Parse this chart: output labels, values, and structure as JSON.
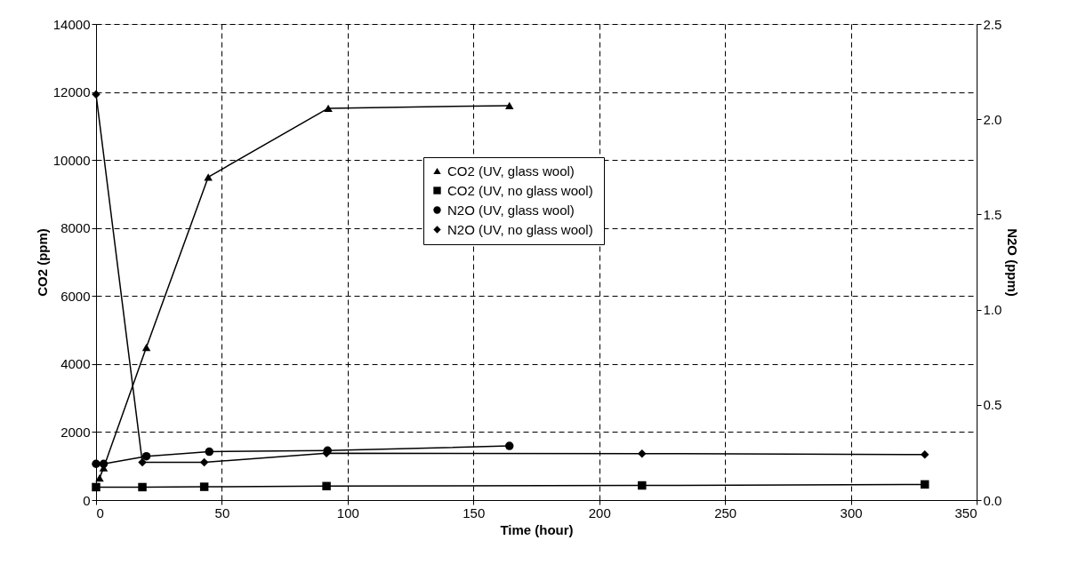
{
  "chart_data": {
    "type": "line",
    "xlabel": "Time (hour)",
    "ylabel": "CO2 (ppm)",
    "y2label": "N2O (ppm)",
    "xlim": [
      0,
      350
    ],
    "xticks": [
      0,
      50,
      100,
      150,
      200,
      250,
      300,
      350
    ],
    "ylim": [
      0,
      14000
    ],
    "yticks": [
      0,
      2000,
      4000,
      6000,
      8000,
      10000,
      12000,
      14000
    ],
    "y2lim": [
      0,
      2.5
    ],
    "y2ticks": [
      {
        "value": 0,
        "label": "0.0"
      },
      {
        "value": 0.5,
        "label": "0.5"
      },
      {
        "value": 1,
        "label": "1.0"
      },
      {
        "value": 1.5,
        "label": "1.5"
      },
      {
        "value": 2,
        "label": "2.0"
      },
      {
        "value": 2.5,
        "label": "2.5"
      }
    ],
    "grid": true,
    "legend": "right",
    "line_style": "solid",
    "series": [
      {
        "name": "CO2 (UV,  glass wool)",
        "color": "#000000",
        "marker": "triangle",
        "x": [
          1.4,
          3,
          20,
          44.6,
          92.3,
          164.3
        ],
        "values": [
          650,
          950,
          4490,
          9500,
          11520,
          11600
        ]
      },
      {
        "name": "CO2 (UV, no glass wool)",
        "color": "#000000",
        "marker": "square",
        "x": [
          0,
          18.4,
          43,
          91.6,
          217,
          329.4
        ],
        "values": [
          380,
          380,
          390,
          410,
          430,
          460
        ]
      },
      {
        "name": "N2O (UV,  glass wool)",
        "color": "#000000",
        "marker": "circle",
        "axis": "y2",
        "x": [
          0,
          3,
          20,
          45,
          92,
          164.3
        ],
        "values": [
          0.19,
          0.19,
          0.23,
          0.254,
          0.26,
          0.284
        ]
      },
      {
        "name": "N2O (UV,  no glass wool)",
        "color": "#000000",
        "marker": "diamond",
        "axis": "y2",
        "x": [
          0,
          18.4,
          43,
          91.6,
          217,
          329.4
        ],
        "values": [
          2.13,
          0.198,
          0.198,
          0.246,
          0.244,
          0.239
        ]
      }
    ]
  }
}
